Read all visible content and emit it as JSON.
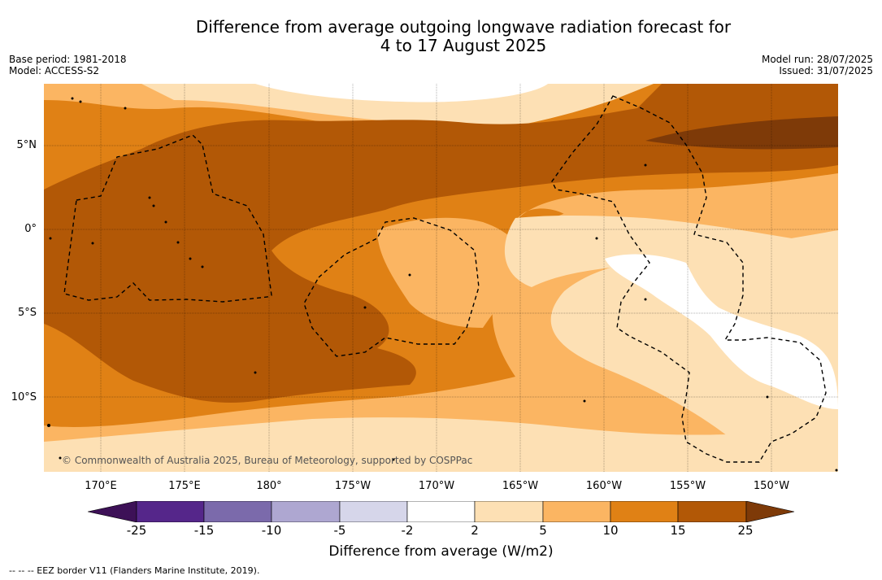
{
  "title_line1": "Difference from average outgoing longwave radiation forecast for",
  "title_line2": "4 to 17 August 2025",
  "base_period": "Base period: 1981-2018",
  "model": "Model: ACCESS-S2",
  "model_run": "Model run: 28/07/2025",
  "issued": "Issued: 31/07/2025",
  "latitudes": [
    "5°N",
    "0°",
    "5°S",
    "10°S"
  ],
  "longitudes": [
    "170°E",
    "175°E",
    "180°",
    "175°W",
    "170°W",
    "165°W",
    "160°W",
    "155°W",
    "150°W"
  ],
  "colorbar": {
    "ticks": [
      "-25",
      "-15",
      "-10",
      "-5",
      "-2",
      "2",
      "5",
      "10",
      "15",
      "25"
    ],
    "colors": [
      "#3d1157",
      "#55268a",
      "#7b6aab",
      "#aea7d1",
      "#d6d6ea",
      "#ffffff",
      "#fde0b4",
      "#fbb562",
      "#e08115",
      "#b25806",
      "#7e3a08"
    ],
    "label": "Difference from average (W/m2)"
  },
  "copyright": "© Commonwealth of Australia 2025, Bureau of Meteorology, supported by COSPPac",
  "footer": "--  --  -- EEZ border V11 (Flanders Marine Institute, 2019)."
}
